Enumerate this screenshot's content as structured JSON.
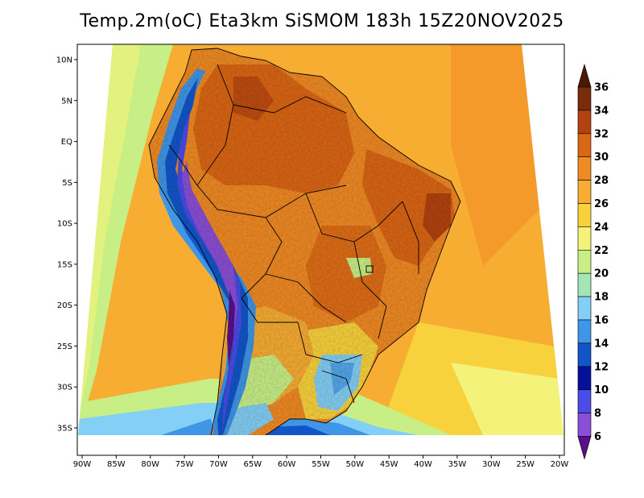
{
  "title": "Temp.2m(oC) Eta3km SiSMOM 183h 15Z20NOV2025",
  "map": {
    "lon_ticks": [
      "90W",
      "85W",
      "80W",
      "75W",
      "70W",
      "65W",
      "60W",
      "55W",
      "50W",
      "45W",
      "40W",
      "35W",
      "30W",
      "25W",
      "20W"
    ],
    "lat_ticks": [
      "10N",
      "5N",
      "EQ",
      "5S",
      "10S",
      "15S",
      "20S",
      "25S",
      "30S",
      "35S"
    ]
  },
  "colorbar": {
    "labels": [
      "36",
      "34",
      "32",
      "30",
      "28",
      "26",
      "24",
      "22",
      "20",
      "18",
      "16",
      "14",
      "12",
      "10",
      "8",
      "6"
    ],
    "colors": [
      "#4a1a05",
      "#7a2c0a",
      "#b3420f",
      "#db6614",
      "#f08a24",
      "#f7ad32",
      "#f8d23c",
      "#f5f27a",
      "#c8ef86",
      "#a2e6b8",
      "#83cff5",
      "#3f95e6",
      "#1255c9",
      "#06109a",
      "#4b4be8",
      "#8a4fd6",
      "#9b32b8",
      "#5a0f8a"
    ]
  }
}
